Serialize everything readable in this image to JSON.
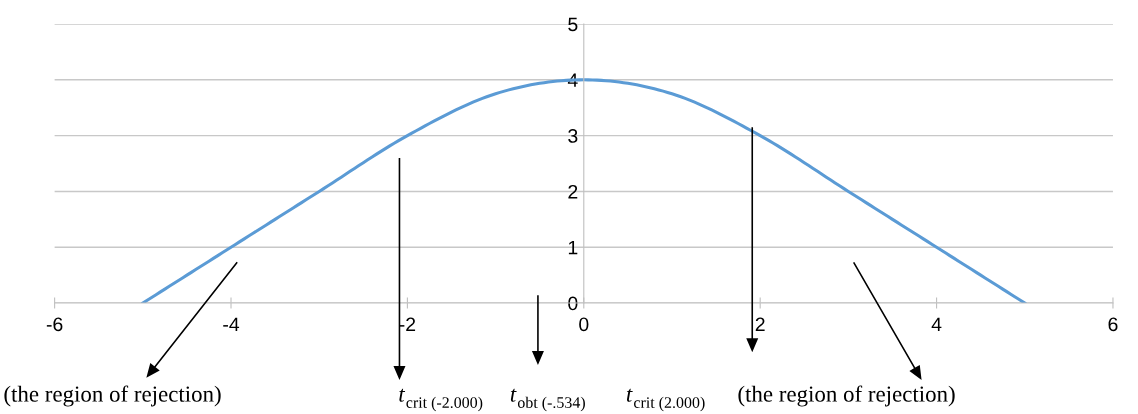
{
  "chart_data": {
    "type": "line",
    "x": [
      -5,
      -4,
      -3,
      -2,
      -1,
      0,
      1,
      2,
      3,
      4,
      5
    ],
    "series": [
      {
        "color": "#5b9bd5",
        "values": [
          0,
          1,
          2,
          3,
          3.75,
          4,
          3.75,
          3,
          2,
          1,
          0
        ]
      }
    ],
    "xlim": [
      -6,
      6
    ],
    "xticks": [
      -6,
      -4,
      -2,
      0,
      2,
      4,
      6
    ],
    "ylim": [
      0,
      5
    ],
    "yticks": [
      0,
      1,
      2,
      3,
      4,
      5
    ],
    "grid": "y",
    "marker": "none",
    "line_style": "solid",
    "annotations": [
      "(the region of rejection)",
      "t$_{crit (-2.000)}$",
      "t$_{obt (-.534)}$",
      "t$_{crit (2.000)}$",
      "(the region of rejection)"
    ]
  }
}
